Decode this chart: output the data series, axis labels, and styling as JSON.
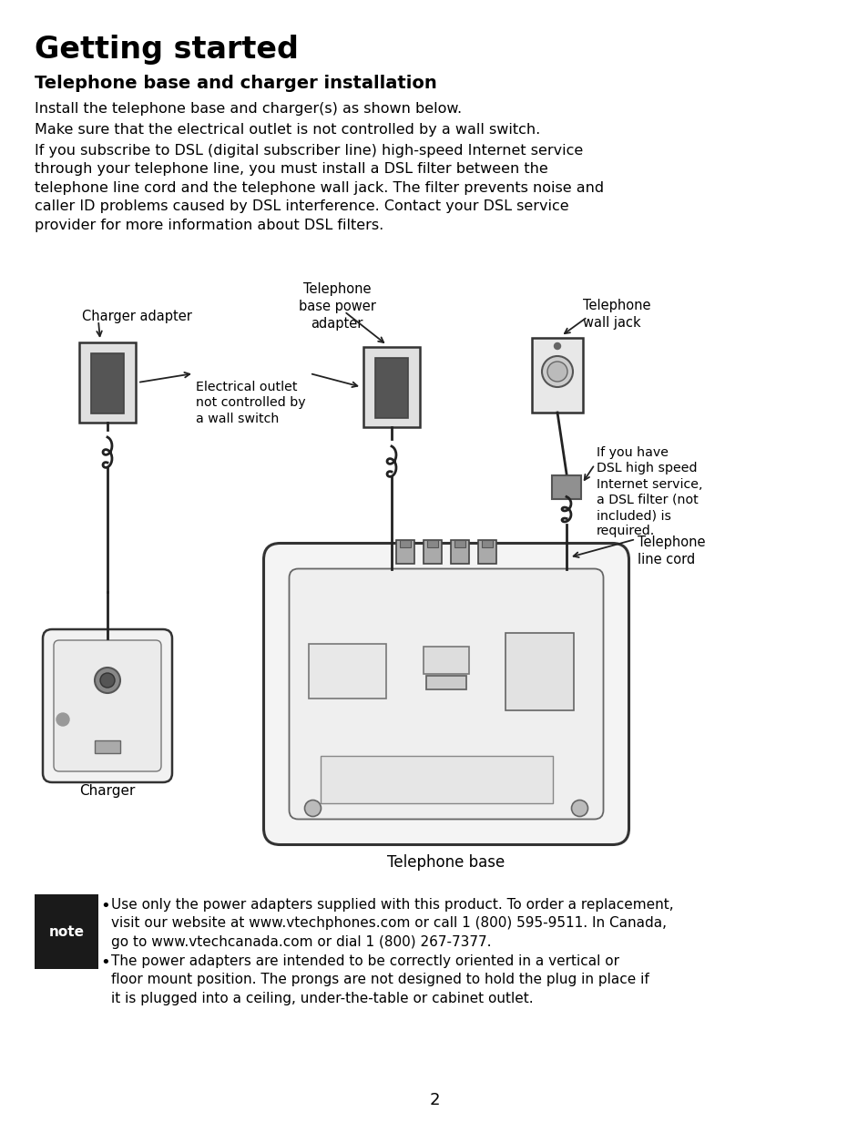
{
  "title": "Getting started",
  "subtitle": "Telephone base and charger installation",
  "para1": "Install the telephone base and charger(s) as shown below.",
  "para2": "Make sure that the electrical outlet is not controlled by a wall switch.",
  "para3": "If you subscribe to DSL (digital subscriber line) high-speed Internet service\nthrough your telephone line, you must install a DSL filter between the\ntelephone line cord and the telephone wall jack. The filter prevents noise and\ncaller ID problems caused by DSL interference. Contact your DSL service\nprovider for more information about DSL filters.",
  "note_bullet1": "Use only the power adapters supplied with this product. To order a replacement,\nvisit our website at www.vtechphones.com or call 1 (800) 595-9511. In Canada,\ngo to www.vtechcanada.com or dial 1 (800) 267-7377.",
  "note_bullet2": "The power adapters are intended to be correctly oriented in a vertical or\nfloor mount position. The prongs are not designed to hold the plug in place if\nit is plugged into a ceiling, under-the-table or cabinet outlet.",
  "page_number": "2",
  "bg_color": "#ffffff",
  "text_color": "#000000",
  "note_bg": "#1a1a1a",
  "note_text_color": "#ffffff",
  "diagram_labels": {
    "charger_adapter": "Charger adapter",
    "telephone_base_power_adapter": "Telephone\nbase power\nadapter",
    "telephone_wall_jack": "Telephone\nwall jack",
    "electrical_outlet": "Electrical outlet\nnot controlled by\na wall switch",
    "dsl_note": "If you have\nDSL high speed\nInternet service,\na DSL filter (not\nincluded) is\nrequired.",
    "telephone_line_cord": "Telephone\nline cord",
    "charger": "Charger",
    "telephone_base": "Telephone base"
  }
}
